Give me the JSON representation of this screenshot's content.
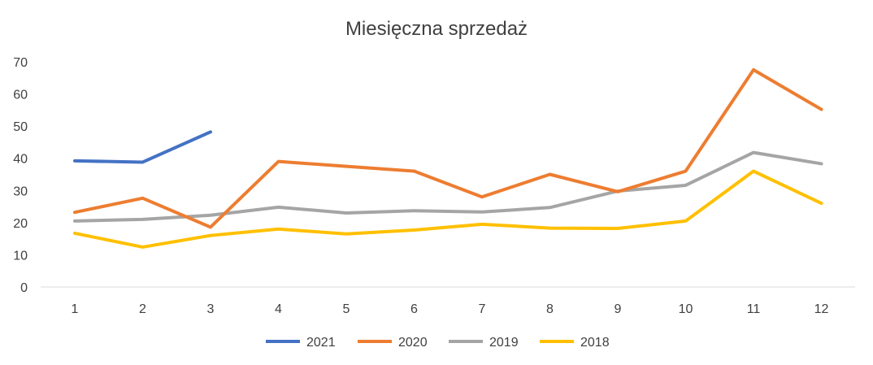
{
  "chart_data": {
    "type": "line",
    "title": "Miesięczna sprzedaż",
    "xlabel": "",
    "ylabel": "",
    "x": [
      "1",
      "2",
      "3",
      "4",
      "5",
      "6",
      "7",
      "8",
      "9",
      "10",
      "11",
      "12"
    ],
    "ylim": [
      0,
      70
    ],
    "yticks": [
      "0",
      "10",
      "20",
      "30",
      "40",
      "50",
      "60",
      "70"
    ],
    "grid": false,
    "legend_position": "bottom",
    "series": [
      {
        "name": "2021",
        "color": "#4472C4",
        "values": [
          39.2,
          38.8,
          48.2,
          null,
          null,
          null,
          null,
          null,
          null,
          null,
          null,
          null
        ]
      },
      {
        "name": "2020",
        "color": "#ED7D31",
        "values": [
          23.2,
          27.6,
          18.6,
          39.0,
          37.5,
          36.0,
          28.0,
          35.0,
          29.6,
          36.0,
          67.5,
          55.2
        ]
      },
      {
        "name": "2019",
        "color": "#A5A5A5",
        "values": [
          20.5,
          21.0,
          22.3,
          24.8,
          23.0,
          23.7,
          23.3,
          24.7,
          29.8,
          31.6,
          41.8,
          38.3
        ]
      },
      {
        "name": "2018",
        "color": "#FFC000",
        "values": [
          16.7,
          12.4,
          16.0,
          18.0,
          16.5,
          17.7,
          19.5,
          18.3,
          18.2,
          20.5,
          36.0,
          26.0
        ]
      }
    ]
  }
}
